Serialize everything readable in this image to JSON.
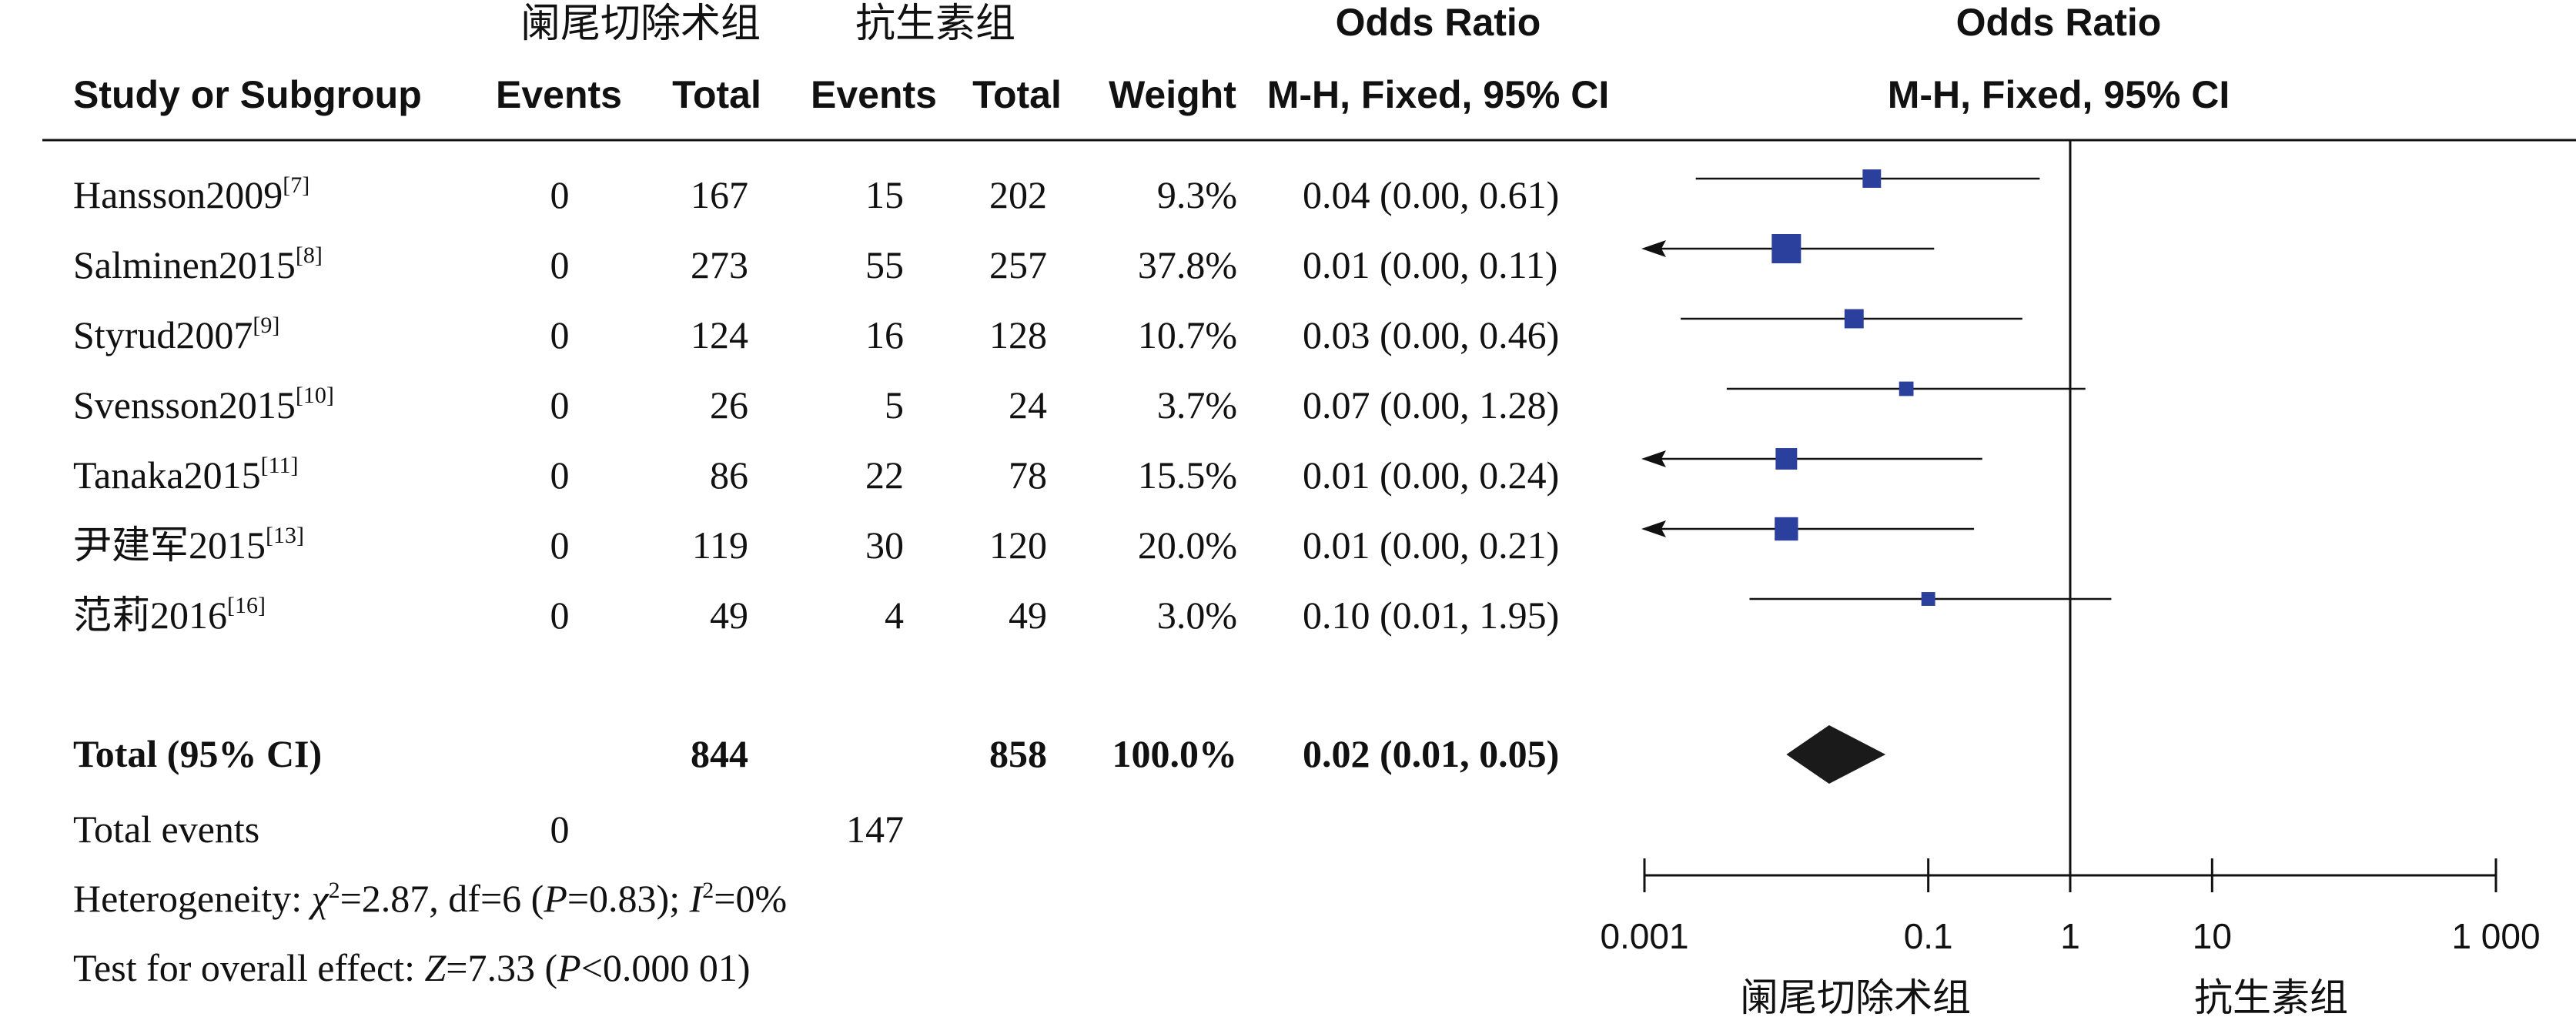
{
  "groups": {
    "experimental": "阑尾切除术组",
    "control": "抗生素组"
  },
  "headers": {
    "study": "Study or Subgroup",
    "events": "Events",
    "total": "Total",
    "weight": "Weight",
    "or_title": "Odds Ratio",
    "or_method": "M-H, Fixed, 95% CI",
    "plot_title": "Odds Ratio",
    "plot_method": "M-H, Fixed, 95% CI"
  },
  "chart_data": {
    "type": "forest",
    "x_scale": "log",
    "xlim": [
      0.001,
      1000
    ],
    "studies": [
      {
        "name": "Hansson2009",
        "ref": "[7]",
        "exp_events": "0",
        "exp_total": "167",
        "ctl_events": "15",
        "ctl_total": "202",
        "weight": "9.3%",
        "ci_text": "0.04 (0.00, 0.61)",
        "or": 0.04,
        "lo": 0.0023,
        "hi": 0.61,
        "w": 9.3
      },
      {
        "name": "Salminen2015",
        "ref": "[8]",
        "exp_events": "0",
        "exp_total": "273",
        "ctl_events": "55",
        "ctl_total": "257",
        "weight": "37.8%",
        "ci_text": "0.01 (0.00, 0.11)",
        "or": 0.01,
        "lo": 0.0005,
        "hi": 0.11,
        "w": 37.8
      },
      {
        "name": "Styrud2007",
        "ref": "[9]",
        "exp_events": "0",
        "exp_total": "124",
        "ctl_events": "16",
        "ctl_total": "128",
        "weight": "10.7%",
        "ci_text": "0.03 (0.00, 0.46)",
        "or": 0.03,
        "lo": 0.0018,
        "hi": 0.46,
        "w": 10.7
      },
      {
        "name": "Svensson2015",
        "ref": "[10]",
        "exp_events": "0",
        "exp_total": "26",
        "ctl_events": "5",
        "ctl_total": "24",
        "weight": "3.7%",
        "ci_text": "0.07 (0.00, 1.28)",
        "or": 0.07,
        "lo": 0.0038,
        "hi": 1.28,
        "w": 3.7
      },
      {
        "name": "Tanaka2015",
        "ref": "[11]",
        "exp_events": "0",
        "exp_total": "86",
        "ctl_events": "22",
        "ctl_total": "78",
        "weight": "15.5%",
        "ci_text": "0.01 (0.00, 0.24)",
        "or": 0.01,
        "lo": 0.0005,
        "hi": 0.24,
        "w": 15.5
      },
      {
        "name": "尹建军2015",
        "ref": "[13]",
        "exp_events": "0",
        "exp_total": "119",
        "ctl_events": "30",
        "ctl_total": "120",
        "weight": "20.0%",
        "ci_text": "0.01 (0.00, 0.21)",
        "or": 0.01,
        "lo": 0.0005,
        "hi": 0.21,
        "w": 20.0
      },
      {
        "name": "范莉2016",
        "ref": "[16]",
        "exp_events": "0",
        "exp_total": "49",
        "ctl_events": "4",
        "ctl_total": "49",
        "weight": "3.0%",
        "ci_text": "0.10 (0.01, 1.95)",
        "or": 0.1,
        "lo": 0.0055,
        "hi": 1.95,
        "w": 3.0
      }
    ],
    "total": {
      "label": "Total (95% CI)",
      "exp_total": "844",
      "ctl_total": "858",
      "weight": "100.0%",
      "ci_text": "0.02 (0.01, 0.05)",
      "or": 0.02,
      "lo": 0.01,
      "hi": 0.05
    },
    "total_events": {
      "label": "Total events",
      "exp": "0",
      "ctl": "147"
    },
    "heterogeneity": {
      "label": "Heterogeneity: ",
      "chi_sym": "χ",
      "chi_sup": "2",
      "chi_val": "=2.87, df=6 (",
      "p_sym": "P",
      "p_val": "=0.83); ",
      "i_sym": "I",
      "i_sup": "2",
      "i_val": "=0%"
    },
    "overall_effect": {
      "label": "Test for overall effect: ",
      "z_sym": "Z",
      "z_val": "=7.33 (",
      "p_sym": "P",
      "p_val": "<0.000 01)"
    },
    "ticks": [
      {
        "value": 0.001,
        "label": "0.001"
      },
      {
        "value": 0.1,
        "label": "0.1"
      },
      {
        "value": 1,
        "label": "1"
      },
      {
        "value": 10,
        "label": "10"
      },
      {
        "value": 1000,
        "label": "1 000"
      }
    ],
    "favours_left": "阑尾切除术组",
    "favours_right": "抗生素组"
  },
  "colors": {
    "square": "#2b3f9c",
    "diamond": "#1a1a1a",
    "line": "#111111"
  }
}
